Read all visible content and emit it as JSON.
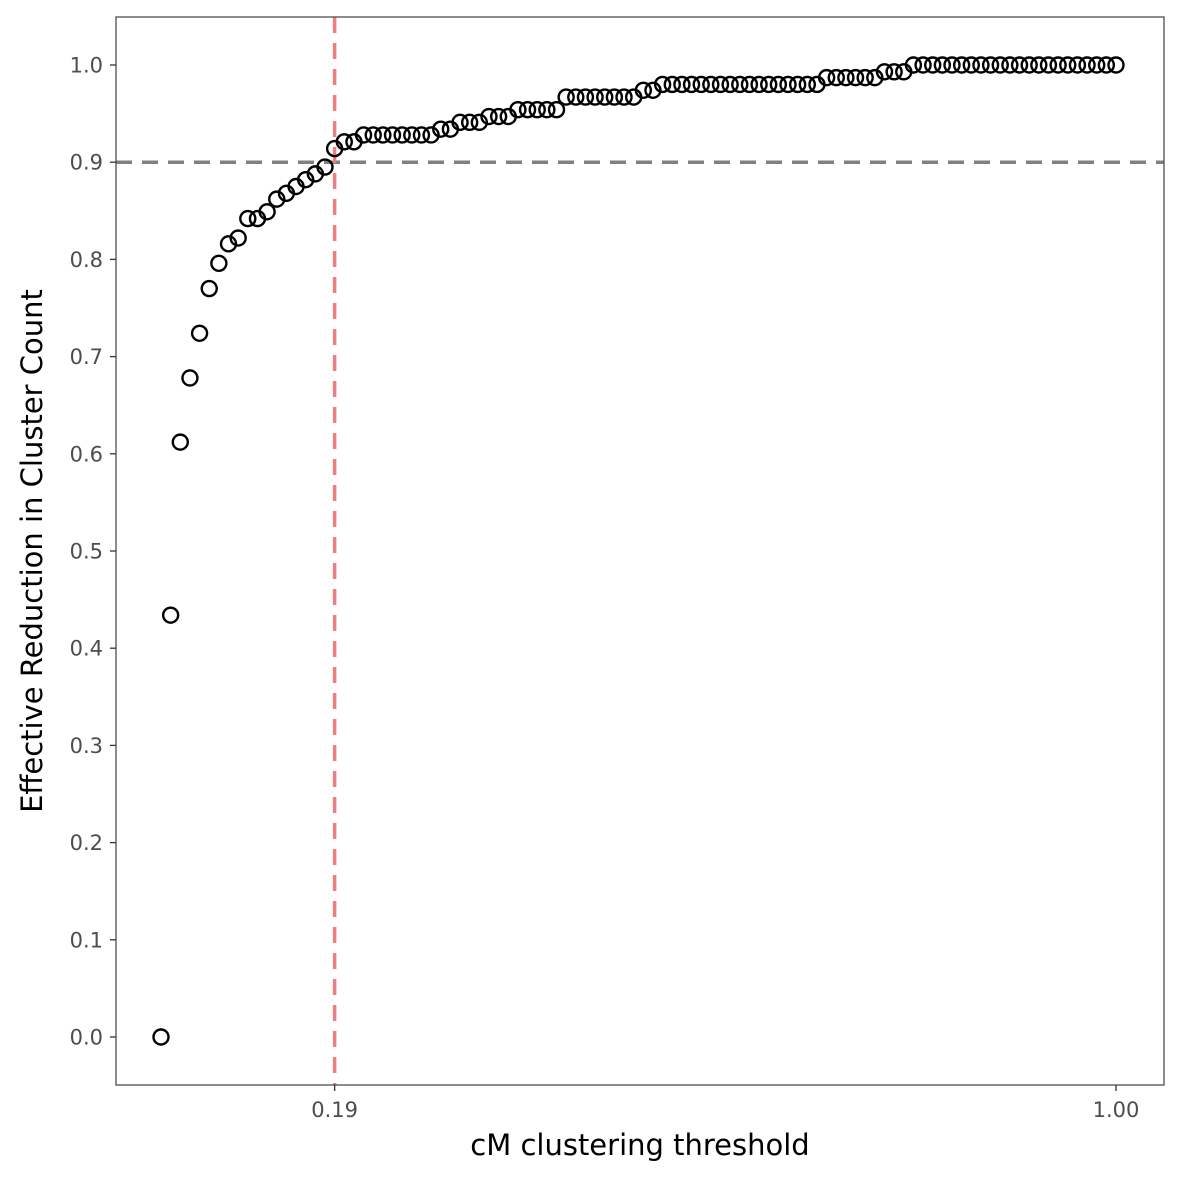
{
  "chart_data": {
    "type": "scatter",
    "title": "",
    "xlabel": "cM clustering threshold",
    "ylabel": "Effective Reduction in Cluster Count",
    "xlim": [
      0.01,
      1.0
    ],
    "ylim": [
      0,
      1.0
    ],
    "x_ticks": [
      {
        "value": 0.19,
        "label": "0.19"
      },
      {
        "value": 1.0,
        "label": "1.00"
      }
    ],
    "y_ticks": [
      {
        "value": 0.0,
        "label": "0.0"
      },
      {
        "value": 0.1,
        "label": "0.1"
      },
      {
        "value": 0.2,
        "label": "0.2"
      },
      {
        "value": 0.3,
        "label": "0.3"
      },
      {
        "value": 0.4,
        "label": "0.4"
      },
      {
        "value": 0.5,
        "label": "0.5"
      },
      {
        "value": 0.6,
        "label": "0.6"
      },
      {
        "value": 0.7,
        "label": "0.7"
      },
      {
        "value": 0.8,
        "label": "0.8"
      },
      {
        "value": 0.9,
        "label": "0.9"
      },
      {
        "value": 1.0,
        "label": "1.0"
      }
    ],
    "grid": false,
    "legend": "none",
    "reference_lines": [
      {
        "orientation": "horizontal",
        "value": 0.9,
        "style": "dashed",
        "color": "#808080"
      },
      {
        "orientation": "vertical",
        "value": 0.19,
        "style": "dashed",
        "color": "#f08080"
      }
    ],
    "colors": {
      "points": "#000000",
      "panel_border": "#4d4d4d",
      "tick_text": "#4d4d4d"
    },
    "series": [
      {
        "x": [
          0.01,
          0.02,
          0.03,
          0.04,
          0.05,
          0.06,
          0.07,
          0.08,
          0.09,
          0.1,
          0.11,
          0.12,
          0.13,
          0.14,
          0.15,
          0.16,
          0.17,
          0.18,
          0.19,
          0.2,
          0.21,
          0.22,
          0.23,
          0.24,
          0.25,
          0.26,
          0.27,
          0.28,
          0.29,
          0.3,
          0.31,
          0.32,
          0.33,
          0.34,
          0.35,
          0.36,
          0.37,
          0.38,
          0.39,
          0.4,
          0.41,
          0.42,
          0.43,
          0.44,
          0.45,
          0.46,
          0.47,
          0.48,
          0.49,
          0.5,
          0.51,
          0.52,
          0.53,
          0.54,
          0.55,
          0.56,
          0.57,
          0.58,
          0.59,
          0.6,
          0.61,
          0.62,
          0.63,
          0.64,
          0.65,
          0.66,
          0.67,
          0.68,
          0.69,
          0.7,
          0.71,
          0.72,
          0.73,
          0.74,
          0.75,
          0.76,
          0.77,
          0.78,
          0.79,
          0.8,
          0.81,
          0.82,
          0.83,
          0.84,
          0.85,
          0.86,
          0.87,
          0.88,
          0.89,
          0.9,
          0.91,
          0.92,
          0.93,
          0.94,
          0.95,
          0.96,
          0.97,
          0.98,
          0.99,
          1.0
        ],
        "y": [
          0.0,
          0.434,
          0.612,
          0.678,
          0.724,
          0.77,
          0.796,
          0.816,
          0.822,
          0.842,
          0.842,
          0.849,
          0.862,
          0.868,
          0.875,
          0.882,
          0.888,
          0.895,
          0.914,
          0.921,
          0.921,
          0.928,
          0.928,
          0.928,
          0.928,
          0.928,
          0.928,
          0.928,
          0.928,
          0.934,
          0.934,
          0.941,
          0.941,
          0.941,
          0.947,
          0.947,
          0.947,
          0.954,
          0.954,
          0.954,
          0.954,
          0.954,
          0.967,
          0.967,
          0.967,
          0.967,
          0.967,
          0.967,
          0.967,
          0.967,
          0.974,
          0.974,
          0.98,
          0.98,
          0.98,
          0.98,
          0.98,
          0.98,
          0.98,
          0.98,
          0.98,
          0.98,
          0.98,
          0.98,
          0.98,
          0.98,
          0.98,
          0.98,
          0.98,
          0.987,
          0.987,
          0.987,
          0.987,
          0.987,
          0.987,
          0.993,
          0.993,
          0.993,
          1.0,
          1.0,
          1.0,
          1.0,
          1.0,
          1.0,
          1.0,
          1.0,
          1.0,
          1.0,
          1.0,
          1.0,
          1.0,
          1.0,
          1.0,
          1.0,
          1.0,
          1.0,
          1.0,
          1.0,
          1.0,
          1.0
        ]
      }
    ]
  }
}
